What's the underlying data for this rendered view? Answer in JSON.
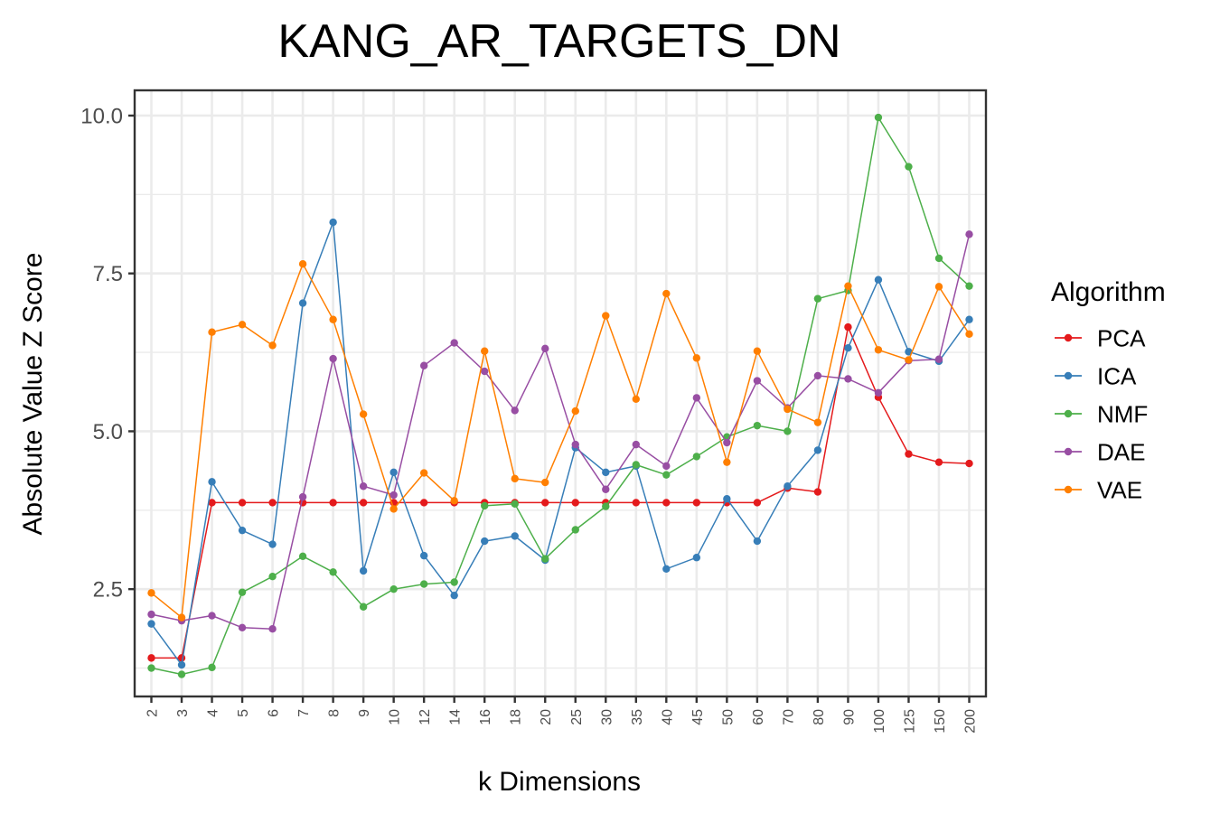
{
  "chart_data": {
    "type": "line",
    "title": "KANG_AR_TARGETS_DN",
    "xlabel": "k Dimensions",
    "ylabel": "Absolute Value Z Score",
    "categories": [
      "2",
      "3",
      "4",
      "5",
      "6",
      "7",
      "8",
      "9",
      "10",
      "12",
      "14",
      "16",
      "18",
      "20",
      "25",
      "30",
      "35",
      "40",
      "45",
      "50",
      "60",
      "70",
      "80",
      "90",
      "100",
      "125",
      "150",
      "200"
    ],
    "yticks": [
      2.5,
      5.0,
      7.5,
      10.0
    ],
    "ytick_labels": [
      "2.5",
      "5.0",
      "7.5",
      "10.0"
    ],
    "ylim": [
      0.8,
      10.4
    ],
    "grid": true,
    "legend": {
      "title": "Algorithm",
      "position": "right"
    },
    "series": [
      {
        "name": "PCA",
        "color": "#e41a1c",
        "values": [
          1.41,
          1.41,
          3.87,
          3.87,
          3.87,
          3.87,
          3.87,
          3.87,
          3.87,
          3.87,
          3.87,
          3.87,
          3.87,
          3.87,
          3.87,
          3.87,
          3.87,
          3.87,
          3.87,
          3.87,
          3.87,
          4.1,
          4.04,
          6.65,
          5.54,
          4.64,
          4.51,
          4.49
        ]
      },
      {
        "name": "ICA",
        "color": "#377eb8",
        "values": [
          1.95,
          1.3,
          4.2,
          3.43,
          3.21,
          7.03,
          8.31,
          2.79,
          4.35,
          3.03,
          2.4,
          3.26,
          3.34,
          2.96,
          4.74,
          4.35,
          4.45,
          2.82,
          3.0,
          3.93,
          3.26,
          4.13,
          4.7,
          6.32,
          7.4,
          6.26,
          6.11,
          6.77
        ]
      },
      {
        "name": "NMF",
        "color": "#4daf4a",
        "values": [
          1.25,
          1.15,
          1.26,
          2.45,
          2.7,
          3.02,
          2.77,
          2.22,
          2.5,
          2.58,
          2.61,
          3.82,
          3.85,
          2.98,
          3.44,
          3.81,
          4.47,
          4.31,
          4.6,
          4.91,
          5.09,
          5.0,
          7.1,
          7.23,
          9.97,
          9.19,
          7.74,
          7.3
        ]
      },
      {
        "name": "DAE",
        "color": "#984ea3",
        "values": [
          2.1,
          2.0,
          2.08,
          1.89,
          1.87,
          3.96,
          6.15,
          4.13,
          3.99,
          6.04,
          6.4,
          5.95,
          5.33,
          6.31,
          4.79,
          4.08,
          4.79,
          4.45,
          5.53,
          4.82,
          5.8,
          5.37,
          5.88,
          5.83,
          5.61,
          6.12,
          6.14,
          8.12
        ]
      },
      {
        "name": "VAE",
        "color": "#ff7f00",
        "values": [
          2.44,
          2.05,
          6.57,
          6.69,
          6.36,
          7.65,
          6.77,
          5.27,
          3.77,
          4.34,
          3.9,
          6.27,
          4.25,
          4.19,
          5.32,
          6.83,
          5.51,
          7.18,
          6.16,
          4.51,
          6.27,
          5.35,
          5.14,
          7.3,
          6.29,
          6.13,
          7.29,
          6.54
        ]
      }
    ]
  }
}
